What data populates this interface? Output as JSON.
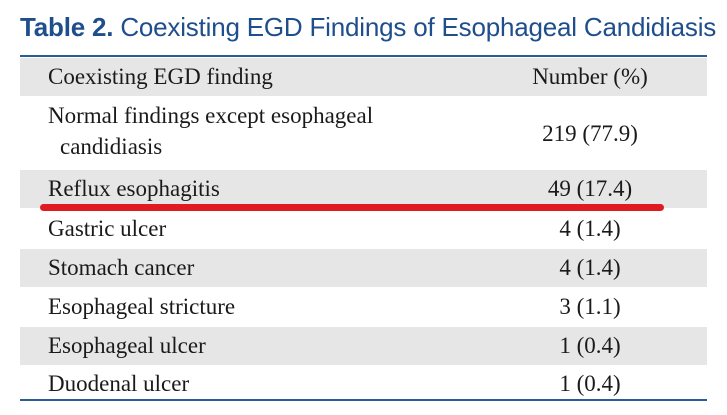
{
  "caption": {
    "label": "Table 2.",
    "title": " Coexisting EGD Findings of Esophageal Candidiasis"
  },
  "table": {
    "headers": {
      "finding": "Coexisting EGD finding",
      "number": "Number (%)"
    },
    "rows": [
      {
        "finding_line1": "Normal findings except esophageal",
        "finding_line2": "candidiasis",
        "number": "219 (77.9)"
      },
      {
        "finding": "Reflux esophagitis",
        "number": "49 (17.4)"
      },
      {
        "finding": "Gastric ulcer",
        "number": "4 (1.4)"
      },
      {
        "finding": "Stomach cancer",
        "number": "4 (1.4)"
      },
      {
        "finding": "Esophageal stricture",
        "number": "3 (1.1)"
      },
      {
        "finding": "Esophageal ulcer",
        "number": "1 (0.4)"
      },
      {
        "finding": "Duodenal ulcer",
        "number": "1 (0.4)"
      }
    ]
  },
  "colors": {
    "title": "#1f4e8c",
    "rule": "#2a5c96",
    "shade": "#e6e6e6",
    "highlight_underline": "#e01a22"
  }
}
